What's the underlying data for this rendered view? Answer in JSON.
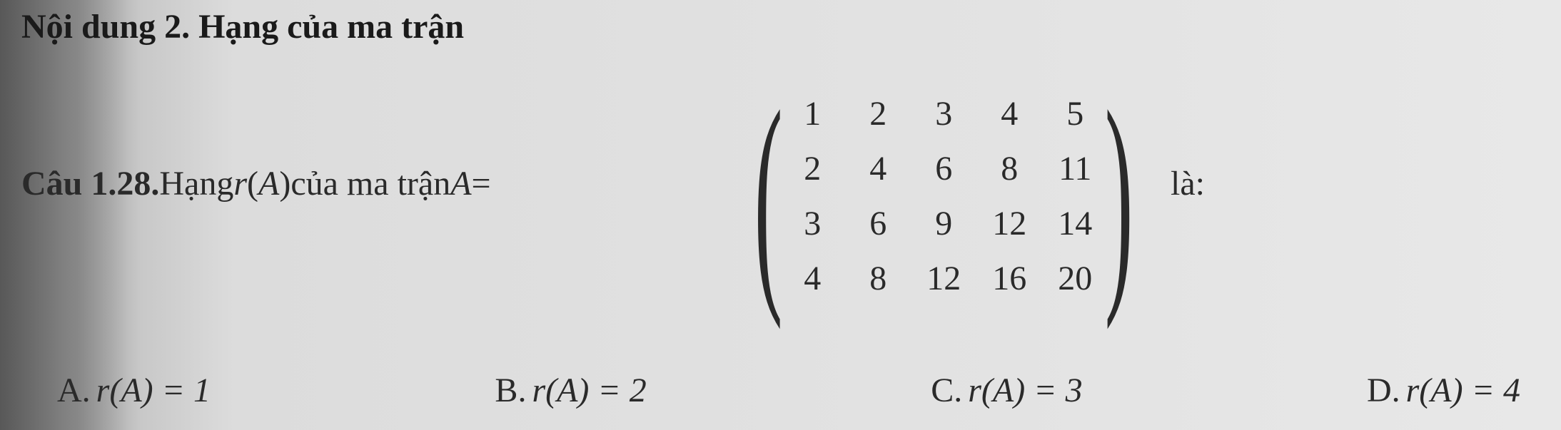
{
  "section": {
    "title": "Nội dung 2. Hạng của ma trận"
  },
  "question": {
    "number": "Câu 1.28.",
    "stem_prefix": " Hạng ",
    "rA": "r",
    "paren_open": "(",
    "A": "A",
    "paren_close": ")",
    "stem_mid": " của ma trận ",
    "A_eq": "A",
    "equals": " = ",
    "la": "là:"
  },
  "matrix": {
    "rows": [
      [
        "1",
        "2",
        "3",
        "4",
        "5"
      ],
      [
        "2",
        "4",
        "6",
        "8",
        "11"
      ],
      [
        "3",
        "6",
        "9",
        "12",
        "14"
      ],
      [
        "4",
        "8",
        "12",
        "16",
        "20"
      ]
    ]
  },
  "answers": {
    "A": {
      "label": "A.",
      "expr": "r(A) = 1"
    },
    "B": {
      "label": "B.",
      "expr": "r(A) = 2"
    },
    "C": {
      "label": "C.",
      "expr": "r(A) = 3"
    },
    "D": {
      "label": "D.",
      "expr": "r(A) = 4"
    }
  },
  "style": {
    "font_family": "Times New Roman",
    "title_fontsize": 48,
    "body_fontsize": 48,
    "text_color": "#2a2a2a",
    "background_gradient": [
      "#888888",
      "#dcdcdc",
      "#e8e8e8"
    ]
  }
}
